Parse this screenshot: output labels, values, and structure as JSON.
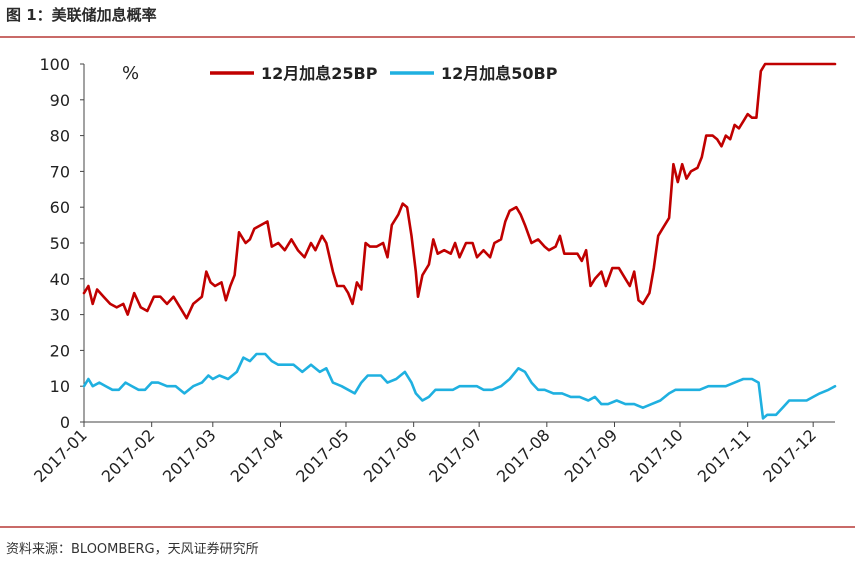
{
  "header": {
    "title": "图 1：美联储加息概率"
  },
  "footer": {
    "source": "资料来源：BLOOMBERG，天风证券研究所"
  },
  "colors": {
    "series_25bp": "#c00000",
    "series_50bp": "#1fb0e0",
    "rule": "#c0504d"
  },
  "chart_data": {
    "type": "line",
    "unit": "%",
    "ylim": [
      0,
      100
    ],
    "yticks": [
      0,
      10,
      20,
      30,
      40,
      50,
      60,
      70,
      80,
      90,
      100
    ],
    "xticks": [
      "2017-01",
      "2017-02",
      "2017-03",
      "2017-04",
      "2017-05",
      "2017-06",
      "2017-07",
      "2017-08",
      "2017-09",
      "2017-10",
      "2017-11",
      "2017-12"
    ],
    "xlim": [
      "2017-01-01",
      "2017-12-11"
    ],
    "grid": false,
    "legend_position": "top",
    "series": [
      {
        "name": "12月加息25BP",
        "points": [
          [
            "2017-01-01",
            36
          ],
          [
            "2017-01-03",
            38
          ],
          [
            "2017-01-05",
            33
          ],
          [
            "2017-01-07",
            37
          ],
          [
            "2017-01-10",
            35
          ],
          [
            "2017-01-13",
            33
          ],
          [
            "2017-01-16",
            32
          ],
          [
            "2017-01-19",
            33
          ],
          [
            "2017-01-21",
            30
          ],
          [
            "2017-01-24",
            36
          ],
          [
            "2017-01-27",
            32
          ],
          [
            "2017-01-30",
            31
          ],
          [
            "2017-02-02",
            35
          ],
          [
            "2017-02-05",
            35
          ],
          [
            "2017-02-08",
            33
          ],
          [
            "2017-02-11",
            35
          ],
          [
            "2017-02-14",
            32
          ],
          [
            "2017-02-17",
            29
          ],
          [
            "2017-02-20",
            33
          ],
          [
            "2017-02-24",
            35
          ],
          [
            "2017-02-26",
            42
          ],
          [
            "2017-02-28",
            39
          ],
          [
            "2017-03-02",
            38
          ],
          [
            "2017-03-05",
            39
          ],
          [
            "2017-03-07",
            34
          ],
          [
            "2017-03-09",
            38
          ],
          [
            "2017-03-11",
            41
          ],
          [
            "2017-03-13",
            53
          ],
          [
            "2017-03-16",
            50
          ],
          [
            "2017-03-18",
            51
          ],
          [
            "2017-03-20",
            54
          ],
          [
            "2017-03-23",
            55
          ],
          [
            "2017-03-26",
            56
          ],
          [
            "2017-03-28",
            49
          ],
          [
            "2017-03-31",
            50
          ],
          [
            "2017-04-03",
            48
          ],
          [
            "2017-04-06",
            51
          ],
          [
            "2017-04-09",
            48
          ],
          [
            "2017-04-12",
            46
          ],
          [
            "2017-04-15",
            50
          ],
          [
            "2017-04-17",
            48
          ],
          [
            "2017-04-20",
            52
          ],
          [
            "2017-04-22",
            50
          ],
          [
            "2017-04-25",
            42
          ],
          [
            "2017-04-27",
            38
          ],
          [
            "2017-04-30",
            38
          ],
          [
            "2017-05-02",
            36
          ],
          [
            "2017-05-04",
            33
          ],
          [
            "2017-05-06",
            39
          ],
          [
            "2017-05-08",
            37
          ],
          [
            "2017-05-10",
            50
          ],
          [
            "2017-05-12",
            49
          ],
          [
            "2017-05-15",
            49
          ],
          [
            "2017-05-18",
            50
          ],
          [
            "2017-05-20",
            46
          ],
          [
            "2017-05-22",
            55
          ],
          [
            "2017-05-25",
            58
          ],
          [
            "2017-05-27",
            61
          ],
          [
            "2017-05-29",
            60
          ],
          [
            "2017-05-31",
            52
          ],
          [
            "2017-06-02",
            42
          ],
          [
            "2017-06-03",
            35
          ],
          [
            "2017-06-05",
            41
          ],
          [
            "2017-06-08",
            44
          ],
          [
            "2017-06-10",
            51
          ],
          [
            "2017-06-12",
            47
          ],
          [
            "2017-06-15",
            48
          ],
          [
            "2017-06-18",
            47
          ],
          [
            "2017-06-20",
            50
          ],
          [
            "2017-06-22",
            46
          ],
          [
            "2017-06-25",
            50
          ],
          [
            "2017-06-28",
            50
          ],
          [
            "2017-06-30",
            46
          ],
          [
            "2017-07-03",
            48
          ],
          [
            "2017-07-06",
            46
          ],
          [
            "2017-07-08",
            50
          ],
          [
            "2017-07-11",
            51
          ],
          [
            "2017-07-13",
            56
          ],
          [
            "2017-07-15",
            59
          ],
          [
            "2017-07-18",
            60
          ],
          [
            "2017-07-20",
            58
          ],
          [
            "2017-07-22",
            55
          ],
          [
            "2017-07-25",
            50
          ],
          [
            "2017-07-28",
            51
          ],
          [
            "2017-07-31",
            49
          ],
          [
            "2017-08-02",
            48
          ],
          [
            "2017-08-05",
            49
          ],
          [
            "2017-08-07",
            52
          ],
          [
            "2017-08-09",
            47
          ],
          [
            "2017-08-12",
            47
          ],
          [
            "2017-08-15",
            47
          ],
          [
            "2017-08-17",
            45
          ],
          [
            "2017-08-19",
            48
          ],
          [
            "2017-08-21",
            38
          ],
          [
            "2017-08-23",
            40
          ],
          [
            "2017-08-26",
            42
          ],
          [
            "2017-08-28",
            38
          ],
          [
            "2017-08-31",
            43
          ],
          [
            "2017-09-03",
            43
          ],
          [
            "2017-09-06",
            40
          ],
          [
            "2017-09-08",
            38
          ],
          [
            "2017-09-10",
            42
          ],
          [
            "2017-09-12",
            34
          ],
          [
            "2017-09-14",
            33
          ],
          [
            "2017-09-17",
            36
          ],
          [
            "2017-09-19",
            43
          ],
          [
            "2017-09-21",
            52
          ],
          [
            "2017-09-23",
            54
          ],
          [
            "2017-09-26",
            57
          ],
          [
            "2017-09-28",
            72
          ],
          [
            "2017-09-30",
            67
          ],
          [
            "2017-10-02",
            72
          ],
          [
            "2017-10-04",
            68
          ],
          [
            "2017-10-06",
            70
          ],
          [
            "2017-10-09",
            71
          ],
          [
            "2017-10-11",
            74
          ],
          [
            "2017-10-13",
            80
          ],
          [
            "2017-10-16",
            80
          ],
          [
            "2017-10-18",
            79
          ],
          [
            "2017-10-20",
            77
          ],
          [
            "2017-10-22",
            80
          ],
          [
            "2017-10-24",
            79
          ],
          [
            "2017-10-26",
            83
          ],
          [
            "2017-10-28",
            82
          ],
          [
            "2017-10-30",
            84
          ],
          [
            "2017-11-01",
            86
          ],
          [
            "2017-11-03",
            85
          ],
          [
            "2017-11-05",
            85
          ],
          [
            "2017-11-07",
            98
          ],
          [
            "2017-11-09",
            100
          ],
          [
            "2017-11-12",
            100
          ],
          [
            "2017-11-20",
            100
          ],
          [
            "2017-12-01",
            100
          ],
          [
            "2017-12-11",
            100
          ]
        ]
      },
      {
        "name": "12月加息50BP",
        "points": [
          [
            "2017-01-01",
            10
          ],
          [
            "2017-01-03",
            12
          ],
          [
            "2017-01-05",
            10
          ],
          [
            "2017-01-08",
            11
          ],
          [
            "2017-01-11",
            10
          ],
          [
            "2017-01-14",
            9
          ],
          [
            "2017-01-17",
            9
          ],
          [
            "2017-01-20",
            11
          ],
          [
            "2017-01-23",
            10
          ],
          [
            "2017-01-26",
            9
          ],
          [
            "2017-01-29",
            9
          ],
          [
            "2017-02-01",
            11
          ],
          [
            "2017-02-04",
            11
          ],
          [
            "2017-02-08",
            10
          ],
          [
            "2017-02-12",
            10
          ],
          [
            "2017-02-16",
            8
          ],
          [
            "2017-02-20",
            10
          ],
          [
            "2017-02-24",
            11
          ],
          [
            "2017-02-27",
            13
          ],
          [
            "2017-03-01",
            12
          ],
          [
            "2017-03-04",
            13
          ],
          [
            "2017-03-08",
            12
          ],
          [
            "2017-03-12",
            14
          ],
          [
            "2017-03-15",
            18
          ],
          [
            "2017-03-18",
            17
          ],
          [
            "2017-03-21",
            19
          ],
          [
            "2017-03-25",
            19
          ],
          [
            "2017-03-28",
            17
          ],
          [
            "2017-03-31",
            16
          ],
          [
            "2017-04-03",
            16
          ],
          [
            "2017-04-07",
            16
          ],
          [
            "2017-04-11",
            14
          ],
          [
            "2017-04-15",
            16
          ],
          [
            "2017-04-19",
            14
          ],
          [
            "2017-04-22",
            15
          ],
          [
            "2017-04-25",
            11
          ],
          [
            "2017-04-29",
            10
          ],
          [
            "2017-05-02",
            9
          ],
          [
            "2017-05-05",
            8
          ],
          [
            "2017-05-08",
            11
          ],
          [
            "2017-05-11",
            13
          ],
          [
            "2017-05-14",
            13
          ],
          [
            "2017-05-17",
            13
          ],
          [
            "2017-05-20",
            11
          ],
          [
            "2017-05-24",
            12
          ],
          [
            "2017-05-28",
            14
          ],
          [
            "2017-05-31",
            11
          ],
          [
            "2017-06-02",
            8
          ],
          [
            "2017-06-05",
            6
          ],
          [
            "2017-06-08",
            7
          ],
          [
            "2017-06-11",
            9
          ],
          [
            "2017-06-15",
            9
          ],
          [
            "2017-06-19",
            9
          ],
          [
            "2017-06-22",
            10
          ],
          [
            "2017-06-26",
            10
          ],
          [
            "2017-06-30",
            10
          ],
          [
            "2017-07-03",
            9
          ],
          [
            "2017-07-07",
            9
          ],
          [
            "2017-07-11",
            10
          ],
          [
            "2017-07-15",
            12
          ],
          [
            "2017-07-19",
            15
          ],
          [
            "2017-07-22",
            14
          ],
          [
            "2017-07-25",
            11
          ],
          [
            "2017-07-28",
            9
          ],
          [
            "2017-07-31",
            9
          ],
          [
            "2017-08-04",
            8
          ],
          [
            "2017-08-08",
            8
          ],
          [
            "2017-08-12",
            7
          ],
          [
            "2017-08-16",
            7
          ],
          [
            "2017-08-20",
            6
          ],
          [
            "2017-08-23",
            7
          ],
          [
            "2017-08-26",
            5
          ],
          [
            "2017-08-29",
            5
          ],
          [
            "2017-09-02",
            6
          ],
          [
            "2017-09-06",
            5
          ],
          [
            "2017-09-10",
            5
          ],
          [
            "2017-09-14",
            4
          ],
          [
            "2017-09-18",
            5
          ],
          [
            "2017-09-22",
            6
          ],
          [
            "2017-09-26",
            8
          ],
          [
            "2017-09-29",
            9
          ],
          [
            "2017-10-02",
            9
          ],
          [
            "2017-10-06",
            9
          ],
          [
            "2017-10-10",
            9
          ],
          [
            "2017-10-14",
            10
          ],
          [
            "2017-10-18",
            10
          ],
          [
            "2017-10-22",
            10
          ],
          [
            "2017-10-26",
            11
          ],
          [
            "2017-10-30",
            12
          ],
          [
            "2017-11-03",
            12
          ],
          [
            "2017-11-06",
            11
          ],
          [
            "2017-11-08",
            1
          ],
          [
            "2017-11-10",
            2
          ],
          [
            "2017-11-14",
            2
          ],
          [
            "2017-11-17",
            4
          ],
          [
            "2017-11-20",
            6
          ],
          [
            "2017-11-24",
            6
          ],
          [
            "2017-11-28",
            6
          ],
          [
            "2017-12-01",
            7
          ],
          [
            "2017-12-04",
            8
          ],
          [
            "2017-12-08",
            9
          ],
          [
            "2017-12-11",
            10
          ]
        ]
      }
    ]
  }
}
